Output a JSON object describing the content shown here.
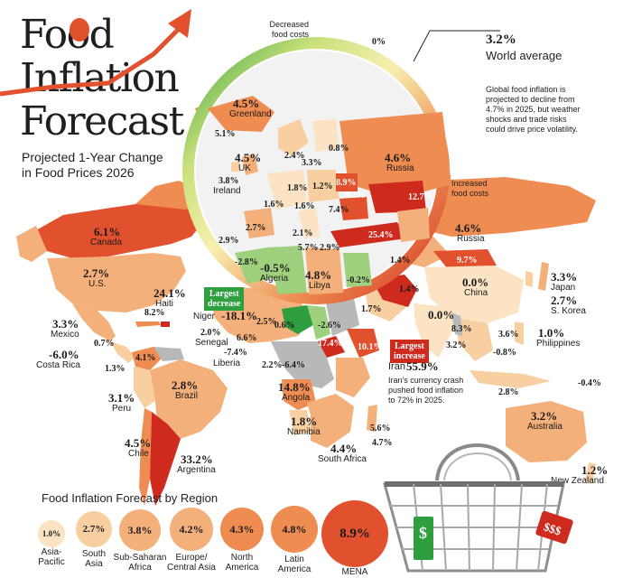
{
  "title": {
    "line1": "Food",
    "line2": "Inflation",
    "line3": "Forecast"
  },
  "subtitle": {
    "line1": "Projected 1-Year Change",
    "line2": "in Food Prices 2026"
  },
  "gauge": {
    "decreased_label_1": "Decreased",
    "decreased_label_2": "food costs",
    "min_value": "-18.1%",
    "zero_value": "0%",
    "max_value": "55.9%",
    "increased_label_1": "Increased",
    "increased_label_2": "food costs"
  },
  "world_average": {
    "value": "3.2%",
    "label": "World average",
    "note_1": "Global food inflation is",
    "note_2": "projected to decline from",
    "note_3": "4.7% in 2025, but weather",
    "note_4": "shocks and trade risks",
    "note_5": "could drive price volatility."
  },
  "countries": {
    "greenland": {
      "value": "4.5%",
      "name": "Greenland"
    },
    "iceland": {
      "value": "5.1%"
    },
    "uk": {
      "value": "4.5%",
      "name": "UK"
    },
    "ireland": {
      "value": "3.8%",
      "name": "Ireland"
    },
    "norway": {
      "value": "2.4%"
    },
    "sweden": {
      "value": "3.3%"
    },
    "finland": {
      "value": "0.8%"
    },
    "russia_inset": {
      "value": "4.6%",
      "name": "Russia"
    },
    "netherlands": {
      "value": "1.8%"
    },
    "poland": {
      "value": "1.2%"
    },
    "belarus": {
      "value": "8.9%"
    },
    "france": {
      "value": "1.6%"
    },
    "switzerland": {
      "value": "1.6%"
    },
    "hungary": {
      "value": "9.2%"
    },
    "romania": {
      "value": "7.4%"
    },
    "kazakhstan": {
      "value": "12.7%"
    },
    "portugal": {
      "value": "2.9%"
    },
    "spain": {
      "value": "2.7%"
    },
    "italy": {
      "value": "2.1%"
    },
    "greece": {
      "value": "5.7%"
    },
    "turkey": {
      "value": "25.4%"
    },
    "cyprus": {
      "value": "2.9%"
    },
    "morocco": {
      "value": "-2.8%"
    },
    "algeria": {
      "value": "-0.5%",
      "name": "Algeria"
    },
    "libya": {
      "value": "4.8%",
      "name": "Libya"
    },
    "egypt": {
      "value": "-0.2%"
    },
    "canada": {
      "value": "6.1%",
      "name": "Canada"
    },
    "russia": {
      "value": "4.6%",
      "name": "Russia"
    },
    "us": {
      "value": "2.7%",
      "name": "U.S."
    },
    "mongolia": {
      "value": "9.7%"
    },
    "china": {
      "value": "0.0%",
      "name": "China"
    },
    "japan": {
      "value": "3.3%",
      "name": "Japan"
    },
    "south_korea": {
      "value": "2.7%",
      "name": "S. Korea"
    },
    "uzbekistan": {
      "value": "1.4%"
    },
    "saudi": {
      "value": "1.7%"
    },
    "iran_small": {
      "value": "1.4%"
    },
    "india": {
      "value": "0.0%"
    },
    "laos": {
      "value": "8.3%"
    },
    "thailand": {
      "value": "3.6%"
    },
    "vietnam": {
      "value": "-0.8%"
    },
    "sri_lanka": {
      "value": "3.2%"
    },
    "philippines": {
      "value": "1.0%",
      "name": "Philippines"
    },
    "papua": {
      "value": "-0.4%"
    },
    "indonesia": {
      "value": "2.8%"
    },
    "haiti": {
      "value": "24.1%",
      "name": "Haiti"
    },
    "mexico": {
      "value": "3.3%",
      "name": "Mexico"
    },
    "cuba": {
      "value": "8.2%"
    },
    "guatemala": {
      "value": "0.7%"
    },
    "costa_rica": {
      "value": "-6.0%",
      "name": "Costa Rica"
    },
    "panama": {
      "value": "1.3%"
    },
    "colombia": {
      "value": "4.1%"
    },
    "brazil": {
      "value": "2.8%",
      "name": "Brazil"
    },
    "peru": {
      "value": "3.1%",
      "name": "Peru"
    },
    "chile": {
      "value": "4.5%",
      "name": "Chile"
    },
    "argentina": {
      "value": "33.2%",
      "name": "Argentina"
    },
    "niger": {
      "value": "-18.1%",
      "name": "Niger"
    },
    "mali": {
      "value": "2.5%"
    },
    "burkina": {
      "value": "0.6%"
    },
    "senegal": {
      "value": "2.0%",
      "name": "Senegal"
    },
    "sierra": {
      "value": "6.6%"
    },
    "liberia": {
      "value": "-7.4%",
      "name": "Liberia"
    },
    "ghana": {
      "value": "2.2%"
    },
    "togo": {
      "value": "-6.4%"
    },
    "chad": {
      "value": "-2.6%"
    },
    "south_sudan": {
      "value": "17.4%"
    },
    "ethiopia": {
      "value": "10.1%"
    },
    "angola": {
      "value": "14.8%",
      "name": "Angola"
    },
    "namibia": {
      "value": "1.8%",
      "name": "Namibia"
    },
    "south_africa": {
      "value": "4.4%",
      "name": "South Africa"
    },
    "madagascar": {
      "value": "5.6%"
    },
    "mauritius": {
      "value": "4.7%"
    },
    "australia": {
      "value": "3.2%",
      "name": "Australia"
    },
    "new_zealand": {
      "value": "1.2%",
      "name": "New Zealand"
    }
  },
  "callouts": {
    "largest_decrease_1": "Largest",
    "largest_decrease_2": "decrease",
    "largest_increase_1": "Largest",
    "largest_increase_2": "increase",
    "iran_name": "Iran",
    "iran_value": "55.9%",
    "iran_note_1": "Iran's currency crash",
    "iran_note_2": "pushed food inflation",
    "iran_note_3": "to 72% in 2025."
  },
  "regions_title": "Food Inflation Forecast by Region",
  "regions": [
    {
      "value": "1.0%",
      "name_1": "Asia-",
      "name_2": "Pacific"
    },
    {
      "value": "2.7%",
      "name_1": "South",
      "name_2": "Asia"
    },
    {
      "value": "3.8%",
      "name_1": "Sub-Saharan",
      "name_2": "Africa"
    },
    {
      "value": "4.2%",
      "name_1": "Europe/",
      "name_2": "Central Asia"
    },
    {
      "value": "4.3%",
      "name_1": "North",
      "name_2": "America"
    },
    {
      "value": "4.8%",
      "name_1": "Latin",
      "name_2": "America"
    },
    {
      "value": "8.9%",
      "name_1": "MENA",
      "name_2": ""
    }
  ],
  "basket": {
    "tag_left": "$",
    "tag_right": "$$$"
  },
  "colors": {
    "deep_red": "#cf2a1e",
    "red": "#e2512d",
    "orange": "#ee8c52",
    "light_orange": "#f4b07a",
    "peach": "#f8cfa0",
    "pale": "#fbe3c4",
    "green": "#2f9e3f",
    "light_green": "#9fd07e",
    "grey": "#b8b8b8"
  }
}
